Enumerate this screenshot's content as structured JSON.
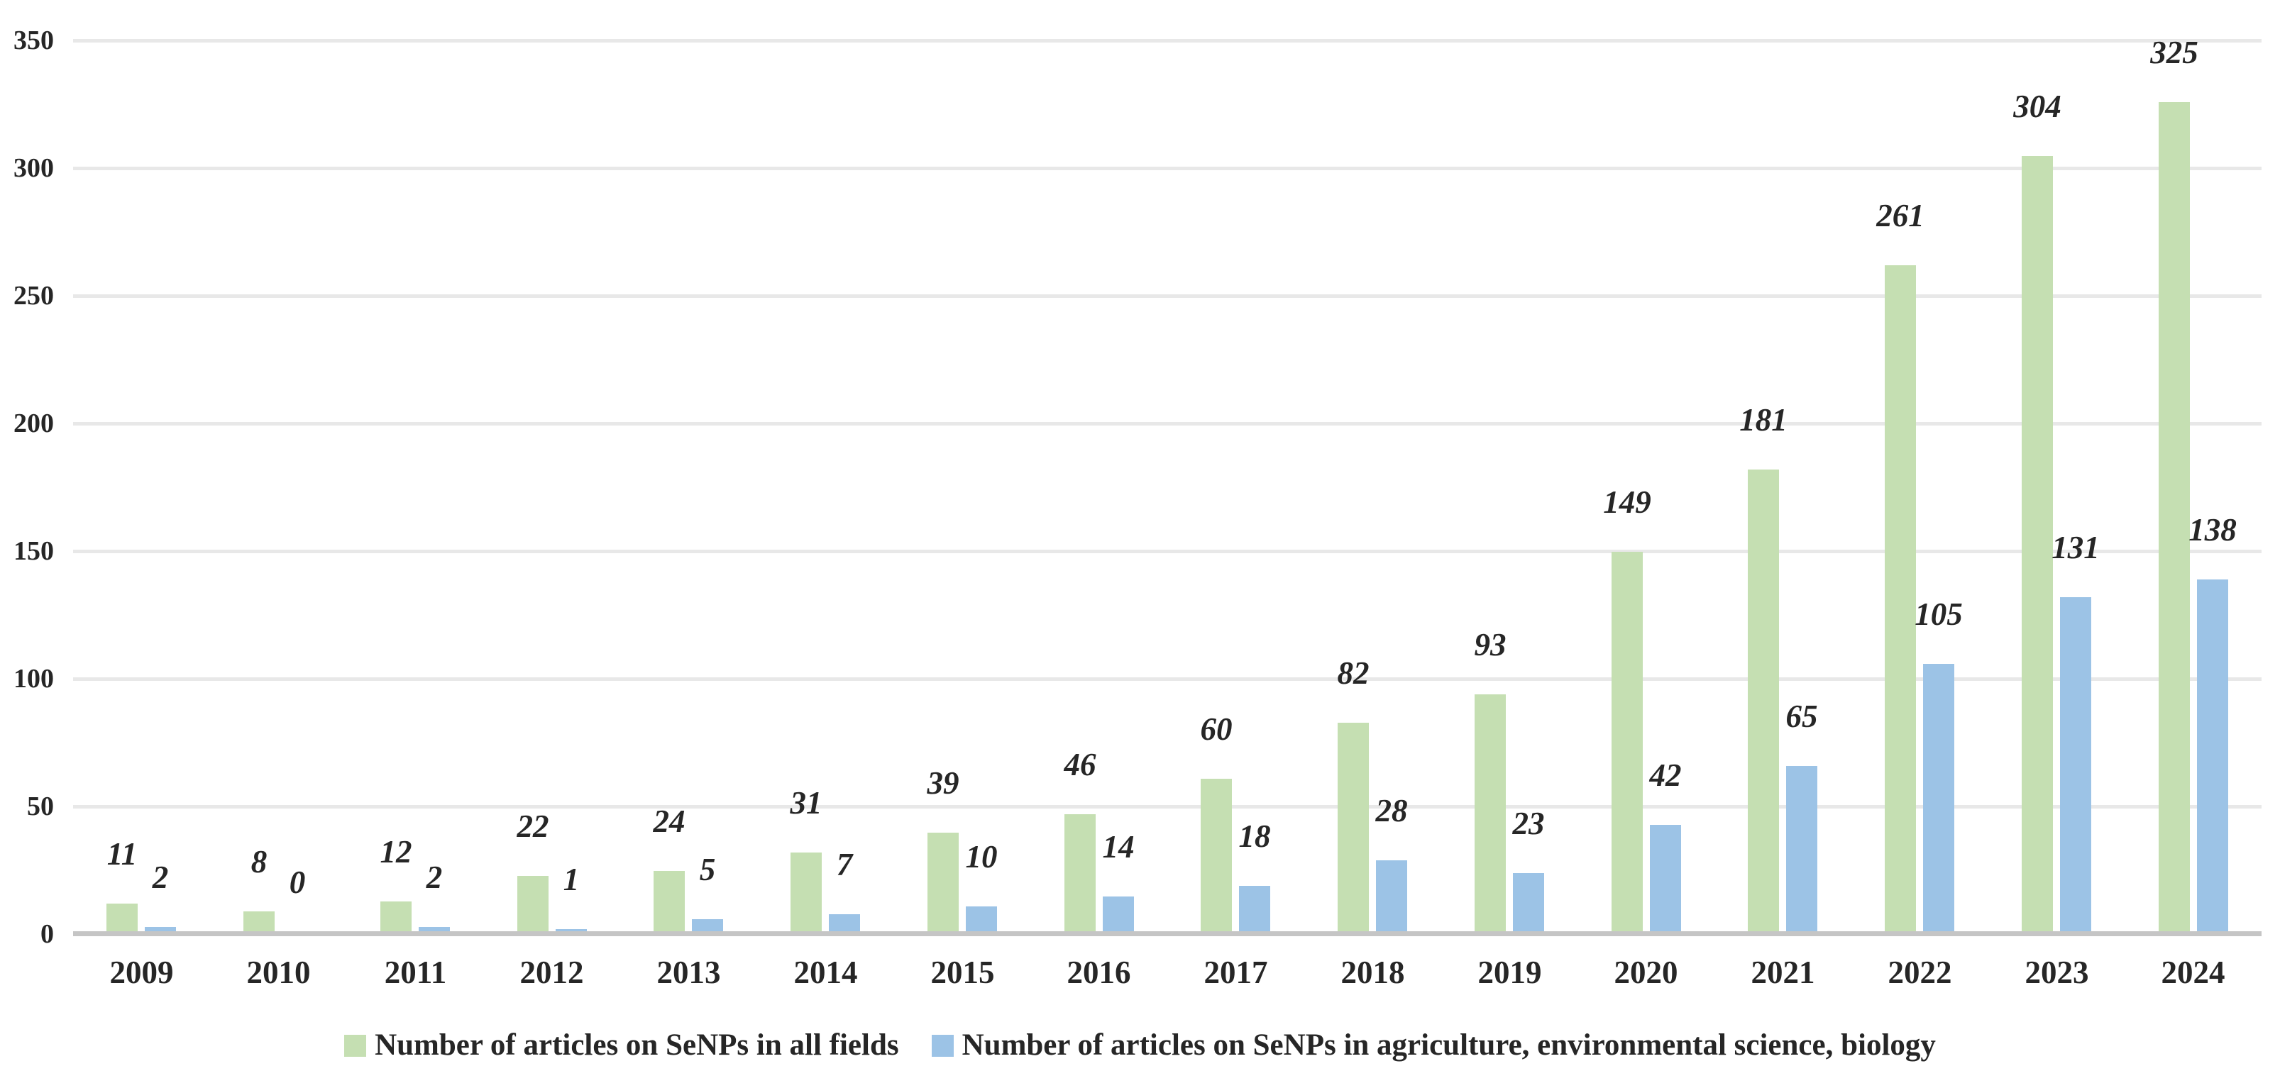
{
  "chart_data": {
    "type": "bar",
    "title": "",
    "xlabel": "",
    "ylabel": "",
    "categories": [
      "2009",
      "2010",
      "2011",
      "2012",
      "2013",
      "2014",
      "2015",
      "2016",
      "2017",
      "2018",
      "2019",
      "2020",
      "2021",
      "2022",
      "2023",
      "2024"
    ],
    "series": [
      {
        "name": "Number of articles on SeNPs in all fields",
        "color": "#c5dfb2",
        "values": [
          11,
          8,
          12,
          22,
          24,
          31,
          39,
          46,
          60,
          82,
          93,
          149,
          181,
          261,
          304,
          325
        ]
      },
      {
        "name": "Number of articles on SeNPs in agriculture, environmental science, biology",
        "color": "#9cc3e6",
        "values": [
          2,
          0,
          2,
          1,
          5,
          7,
          10,
          14,
          18,
          28,
          23,
          42,
          65,
          105,
          131,
          138
        ]
      }
    ],
    "ylim": [
      0,
      350
    ],
    "yticks": [
      0,
      50,
      100,
      150,
      200,
      250,
      300,
      350
    ],
    "grid": true,
    "gridline_color": "#e8e8e8",
    "axis_line_color": "#c5c5c5",
    "text_color": "#262626",
    "data_labels": true,
    "legend_position": "bottom"
  }
}
